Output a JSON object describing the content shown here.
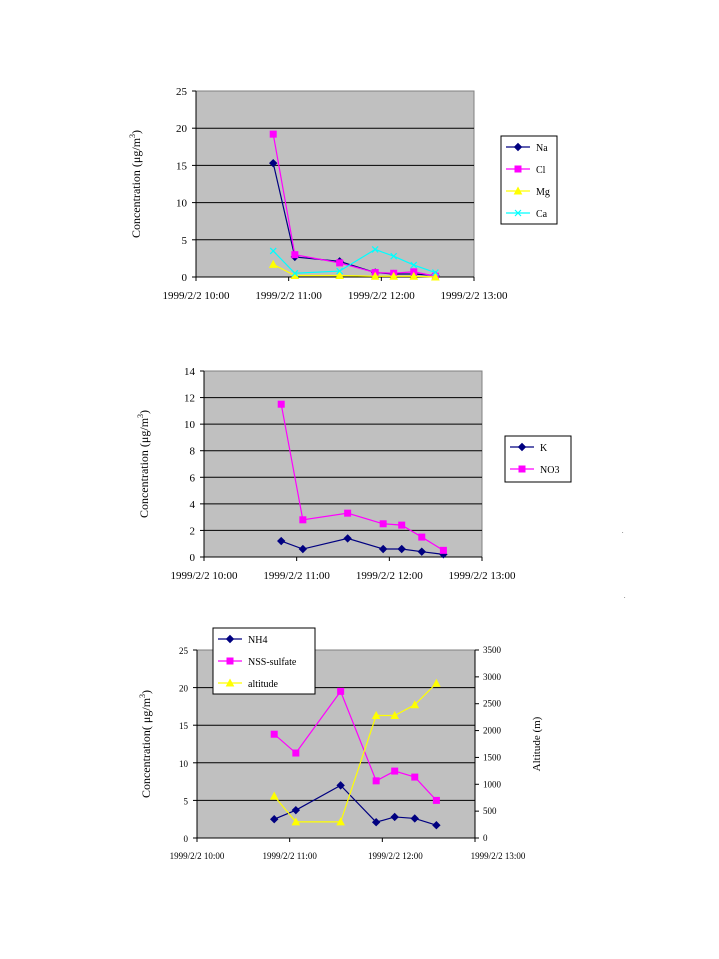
{
  "chart_data": [
    {
      "type": "line",
      "xlabel": "",
      "ylabel": "Concentration (μg/m3)",
      "ylim": [
        0,
        25
      ],
      "yticks": [
        0,
        5,
        10,
        15,
        20,
        25
      ],
      "xlim": [
        "1999/2/2 10:00",
        "1999/2/2 13:00"
      ],
      "xticks": [
        "1999/2/2 10:00",
        "1999/2/2 11:00",
        "1999/2/2 12:00",
        "1999/2/2 13:00"
      ],
      "grid": true,
      "legend": "right",
      "series": [
        {
          "name": "Na",
          "color": "#000080",
          "marker": "diamond",
          "x": [
            "1999/2/2 10:50",
            "1999/2/2 11:04",
            "1999/2/2 11:33",
            "1999/2/2 11:56",
            "1999/2/2 12:08",
            "1999/2/2 12:21",
            "1999/2/2 12:35"
          ],
          "y": [
            15.3,
            2.7,
            2.1,
            0.6,
            0.4,
            0.4,
            0.2
          ]
        },
        {
          "name": "Cl",
          "color": "#FF00FF",
          "marker": "square",
          "x": [
            "1999/2/2 10:50",
            "1999/2/2 11:04",
            "1999/2/2 11:33",
            "1999/2/2 11:56",
            "1999/2/2 12:08",
            "1999/2/2 12:21",
            "1999/2/2 12:35"
          ],
          "y": [
            19.2,
            3.0,
            1.9,
            0.6,
            0.5,
            0.7,
            0.1
          ]
        },
        {
          "name": "Mg",
          "color": "#FFFF00",
          "marker": "triangle",
          "x": [
            "1999/2/2 10:50",
            "1999/2/2 11:04",
            "1999/2/2 11:33",
            "1999/2/2 11:56",
            "1999/2/2 12:08",
            "1999/2/2 12:21",
            "1999/2/2 12:35"
          ],
          "y": [
            1.7,
            0.2,
            0.2,
            0.1,
            0.1,
            0.1,
            0.0
          ]
        },
        {
          "name": "Ca",
          "color": "#00FFFF",
          "marker": "x",
          "x": [
            "1999/2/2 10:50",
            "1999/2/2 11:04",
            "1999/2/2 11:33",
            "1999/2/2 11:56",
            "1999/2/2 12:08",
            "1999/2/2 12:21",
            "1999/2/2 12:35"
          ],
          "y": [
            3.5,
            0.5,
            0.8,
            3.7,
            2.8,
            1.6,
            0.6
          ]
        }
      ]
    },
    {
      "type": "line",
      "xlabel": "",
      "ylabel": "Concentration (μg/m3)",
      "ylim": [
        0,
        14
      ],
      "yticks": [
        0,
        2,
        4,
        6,
        8,
        10,
        12,
        14
      ],
      "xlim": [
        "1999/2/2 10:00",
        "1999/2/2 13:00"
      ],
      "xticks": [
        "1999/2/2 10:00",
        "1999/2/2 11:00",
        "1999/2/2 12:00",
        "1999/2/2 13:00"
      ],
      "grid": true,
      "legend": "right",
      "series": [
        {
          "name": "K",
          "color": "#000080",
          "marker": "diamond",
          "x": [
            "1999/2/2 10:50",
            "1999/2/2 11:04",
            "1999/2/2 11:33",
            "1999/2/2 11:56",
            "1999/2/2 12:08",
            "1999/2/2 12:21",
            "1999/2/2 12:35"
          ],
          "y": [
            1.2,
            0.6,
            1.4,
            0.6,
            0.6,
            0.4,
            0.2
          ]
        },
        {
          "name": "NO3",
          "color": "#FF00FF",
          "marker": "square",
          "x": [
            "1999/2/2 10:50",
            "1999/2/2 11:04",
            "1999/2/2 11:33",
            "1999/2/2 11:56",
            "1999/2/2 12:08",
            "1999/2/2 12:21",
            "1999/2/2 12:35"
          ],
          "y": [
            11.5,
            2.8,
            3.3,
            2.5,
            2.4,
            1.5,
            0.5
          ]
        }
      ]
    },
    {
      "type": "line",
      "xlabel": "",
      "ylabel": "Concentration( μg/m3)",
      "ylabel2": "Altitude (m)",
      "ylim": [
        0,
        25
      ],
      "yticks": [
        0,
        5,
        10,
        15,
        20,
        25
      ],
      "ylim2": [
        0,
        3500
      ],
      "yticks2": [
        0,
        500,
        1000,
        1500,
        2000,
        2500,
        3000,
        3500
      ],
      "xlim": [
        "1999/2/2 10:00",
        "1999/2/2 13:00"
      ],
      "xticks": [
        "1999/2/2 10:00",
        "1999/2/2 11:00",
        "1999/2/2 12:00",
        "1999/2/2 13:00"
      ],
      "grid": true,
      "legend": "top-left",
      "series": [
        {
          "name": "NH4",
          "color": "#000080",
          "marker": "diamond",
          "axis": "left",
          "x": [
            "1999/2/2 10:50",
            "1999/2/2 11:04",
            "1999/2/2 11:33",
            "1999/2/2 11:56",
            "1999/2/2 12:08",
            "1999/2/2 12:21",
            "1999/2/2 12:35"
          ],
          "y": [
            2.5,
            3.7,
            7.0,
            2.1,
            2.8,
            2.6,
            1.7
          ]
        },
        {
          "name": "NSS-sulfate",
          "color": "#FF00FF",
          "marker": "square",
          "axis": "left",
          "x": [
            "1999/2/2 10:50",
            "1999/2/2 11:04",
            "1999/2/2 11:33",
            "1999/2/2 11:56",
            "1999/2/2 12:08",
            "1999/2/2 12:21",
            "1999/2/2 12:35"
          ],
          "y": [
            13.8,
            11.3,
            19.5,
            7.6,
            8.9,
            8.1,
            5.0
          ]
        },
        {
          "name": "altitude",
          "color": "#FFFF00",
          "marker": "triangle",
          "axis": "right",
          "x": [
            "1999/2/2 10:50",
            "1999/2/2 11:04",
            "1999/2/2 11:33",
            "1999/2/2 11:56",
            "1999/2/2 12:08",
            "1999/2/2 12:21",
            "1999/2/2 12:35"
          ],
          "y": [
            780,
            300,
            300,
            2280,
            2280,
            2480,
            2880
          ]
        }
      ]
    }
  ]
}
